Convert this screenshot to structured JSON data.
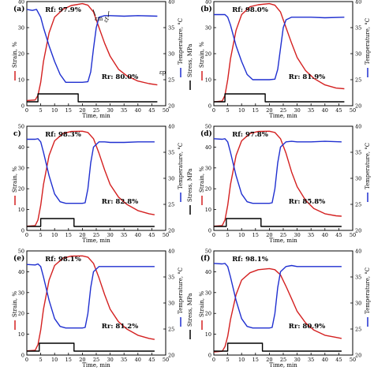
{
  "figure": {
    "colors": {
      "strain": "#d42020",
      "temperature": "#1f2fd0",
      "stress": "#000000"
    },
    "axis_labels": {
      "x": "Time, min",
      "y_left": "Strain, %",
      "y_right1": "Temperature, °C",
      "y_right2": "Stress, MPa"
    }
  },
  "chart_data": [
    {
      "panel": "(a)",
      "type": "line",
      "rf": "Rf: 97.9%",
      "rr": "Rr: 80.0%",
      "annotations": [
        "εm",
        "εf",
        "εp"
      ],
      "xlim": [
        0,
        50
      ],
      "xticks": [
        0,
        5,
        10,
        15,
        20,
        25,
        30,
        35,
        40,
        45,
        50
      ],
      "ylim_strain": [
        0,
        40
      ],
      "yticks_strain": [
        0,
        10,
        20,
        30,
        40
      ],
      "ylim_temp": [
        20,
        40
      ],
      "yticks_temp": [
        20,
        25,
        30,
        35,
        40
      ],
      "series": [
        {
          "name": "Strain",
          "x": [
            0,
            3,
            4,
            5,
            6,
            8,
            10,
            13,
            16,
            20,
            22,
            24,
            26,
            28,
            30,
            33,
            36,
            40,
            44,
            47
          ],
          "y": [
            2,
            2.2,
            4,
            9,
            17,
            28,
            34,
            37,
            38.5,
            39.2,
            38.6,
            36,
            30,
            24,
            19,
            14,
            11.5,
            9.5,
            8.5,
            8
          ]
        },
        {
          "name": "Temperature",
          "x": [
            0,
            2,
            3.5,
            5,
            6,
            8,
            10,
            12,
            14,
            16,
            18,
            20,
            22,
            23,
            24,
            25,
            26,
            28,
            30,
            35,
            40,
            47
          ],
          "y": [
            38.5,
            38.3,
            38.5,
            37,
            35,
            31.5,
            28.5,
            26,
            24.5,
            24.5,
            24.5,
            24.5,
            24.6,
            26.5,
            31,
            35,
            37,
            37.3,
            37.3,
            37.2,
            37.3,
            37.2
          ]
        },
        {
          "name": "Stress",
          "x": [
            0,
            4,
            4,
            18.5,
            18.5,
            47
          ],
          "y": [
            0,
            0,
            1,
            1,
            0,
            0
          ]
        }
      ]
    },
    {
      "panel": "(b)",
      "type": "line",
      "rf": "Rf: 98.0%",
      "rr": "Rr: 81.9%",
      "xlim": [
        0,
        50
      ],
      "xticks": [
        0,
        5,
        10,
        15,
        20,
        25,
        30,
        35,
        40,
        45,
        50
      ],
      "ylim_strain": [
        0,
        40
      ],
      "yticks_strain": [
        0,
        10,
        20,
        30,
        40
      ],
      "ylim_temp": [
        20,
        40
      ],
      "yticks_temp": [
        20,
        25,
        30,
        35,
        40
      ],
      "series": [
        {
          "name": "Strain",
          "x": [
            0,
            3,
            4,
            5,
            6,
            8,
            10,
            13,
            16,
            20,
            22,
            24,
            26,
            28,
            30,
            33,
            36,
            40,
            44,
            47
          ],
          "y": [
            1.5,
            1.8,
            4,
            10,
            18,
            29,
            35,
            38,
            38.8,
            39.2,
            38.6,
            36,
            30,
            24,
            18.5,
            13.5,
            10.5,
            8,
            6.8,
            6.5
          ]
        },
        {
          "name": "Temperature",
          "x": [
            0,
            3,
            4,
            5,
            6,
            8,
            10,
            12,
            14,
            16,
            18,
            20,
            22,
            23,
            24,
            25,
            26,
            28,
            30,
            35,
            40,
            47
          ],
          "y": [
            37.5,
            37.5,
            37.5,
            37,
            35.5,
            31.5,
            28.5,
            26,
            25,
            25,
            25,
            25,
            25.1,
            27,
            31,
            35,
            36.5,
            37,
            37,
            37,
            36.9,
            37
          ]
        },
        {
          "name": "Stress",
          "x": [
            0,
            4,
            4,
            18.5,
            18.5,
            47
          ],
          "y": [
            0,
            0,
            1,
            1,
            0,
            0
          ]
        }
      ]
    },
    {
      "panel": "c)",
      "type": "line",
      "rf": "Rf: 98.3%",
      "rr": "Rr: 82.8%",
      "xlim": [
        0,
        50
      ],
      "xticks": [
        0,
        5,
        10,
        15,
        20,
        25,
        30,
        35,
        40,
        45,
        50
      ],
      "ylim_strain": [
        0,
        50
      ],
      "yticks_strain": [
        0,
        10,
        20,
        30,
        40,
        50
      ],
      "ylim_temp": [
        20,
        40
      ],
      "yticks_temp": [
        20,
        25,
        30,
        35,
        40
      ],
      "series": [
        {
          "name": "Strain",
          "x": [
            0,
            3,
            4,
            5,
            6,
            8,
            10,
            13,
            16,
            20,
            22,
            24,
            26,
            28,
            30,
            33,
            36,
            40,
            44,
            46
          ],
          "y": [
            2,
            2.3,
            5,
            12,
            22,
            36,
            43,
            46.5,
            47.5,
            47.6,
            47,
            44,
            37,
            29,
            22,
            16,
            12.5,
            9.5,
            8,
            7.5
          ]
        },
        {
          "name": "Temperature",
          "x": [
            0,
            3,
            4,
            5,
            6,
            8,
            10,
            12,
            14,
            16,
            18,
            20,
            21,
            22,
            23,
            24,
            26,
            28,
            30,
            35,
            40,
            46
          ],
          "y": [
            37.5,
            37.5,
            37.6,
            37,
            35,
            30.5,
            27,
            25.5,
            25.2,
            25.2,
            25.2,
            25.2,
            25.3,
            28,
            33,
            36,
            37,
            37,
            36.9,
            36.9,
            37,
            37
          ]
        },
        {
          "name": "Stress",
          "x": [
            0,
            5,
            5,
            17,
            17,
            46
          ],
          "y": [
            0,
            0,
            1,
            1,
            0,
            0
          ]
        }
      ]
    },
    {
      "panel": "(d)",
      "type": "line",
      "rf": "Rf: 97.8%",
      "rr": "Rr: 85.8%",
      "xlim": [
        0,
        50
      ],
      "xticks": [
        0,
        5,
        10,
        15,
        20,
        25,
        30,
        35,
        40,
        45,
        50
      ],
      "ylim_strain": [
        0,
        50
      ],
      "yticks_strain": [
        0,
        10,
        20,
        30,
        40,
        50
      ],
      "ylim_temp": [
        20,
        40
      ],
      "yticks_temp": [
        20,
        25,
        30,
        35,
        40
      ],
      "series": [
        {
          "name": "Strain",
          "x": [
            0,
            3,
            4,
            5,
            6,
            8,
            10,
            13,
            16,
            20,
            22,
            24,
            26,
            28,
            30,
            33,
            36,
            40,
            44,
            46
          ],
          "y": [
            2,
            2.3,
            5,
            12,
            22,
            36,
            43,
            46.5,
            47.5,
            47.6,
            47,
            44,
            37,
            28,
            21,
            14.5,
            10.5,
            8,
            7,
            6.8
          ]
        },
        {
          "name": "Temperature",
          "x": [
            0,
            3,
            4,
            5,
            6,
            8,
            10,
            12,
            14,
            16,
            18,
            20,
            21,
            22,
            23,
            24,
            26,
            28,
            30,
            35,
            40,
            46
          ],
          "y": [
            37.6,
            37.5,
            37.6,
            37,
            35,
            30.5,
            27,
            25.5,
            25.2,
            25.2,
            25.2,
            25.2,
            25.3,
            28,
            33,
            36,
            37,
            37.1,
            37,
            37,
            37.1,
            37
          ]
        },
        {
          "name": "Stress",
          "x": [
            0,
            4.5,
            4.5,
            17,
            17,
            46
          ],
          "y": [
            0,
            0,
            1,
            1,
            0,
            0
          ]
        }
      ]
    },
    {
      "panel": "(e)",
      "type": "line",
      "rf": "Rf: 98.1%",
      "rr": "Rr: 81.2%",
      "xlim": [
        0,
        50
      ],
      "xticks": [
        0,
        5,
        10,
        15,
        20,
        25,
        30,
        35,
        40,
        45,
        50
      ],
      "ylim_strain": [
        0,
        50
      ],
      "yticks_strain": [
        0,
        10,
        20,
        30,
        40,
        50
      ],
      "ylim_temp": [
        20,
        40
      ],
      "yticks_temp": [
        20,
        25,
        30,
        35,
        40
      ],
      "series": [
        {
          "name": "Strain",
          "x": [
            0,
            3,
            4,
            5,
            6,
            8,
            10,
            13,
            16,
            20,
            22,
            24,
            26,
            28,
            30,
            33,
            36,
            40,
            44,
            46
          ],
          "y": [
            2,
            2.3,
            5,
            12,
            22,
            36,
            43,
            46.5,
            47.5,
            47.6,
            47,
            44,
            37,
            29,
            22,
            16,
            12.5,
            9.5,
            8,
            7.5
          ]
        },
        {
          "name": "Temperature",
          "x": [
            0,
            3,
            4,
            5,
            6,
            8,
            10,
            12,
            14,
            16,
            18,
            20,
            21,
            22,
            23,
            24,
            26,
            28,
            30,
            35,
            40,
            46
          ],
          "y": [
            37.4,
            37.3,
            37.5,
            37,
            35,
            30.5,
            27,
            25.5,
            25.2,
            25.2,
            25.2,
            25.2,
            25.3,
            28,
            33,
            36,
            37,
            37,
            37,
            37,
            37,
            37
          ]
        },
        {
          "name": "Stress",
          "x": [
            0,
            4.5,
            4.5,
            17,
            17,
            46
          ],
          "y": [
            0,
            0,
            1,
            1,
            0,
            0
          ]
        }
      ]
    },
    {
      "panel": "(f)",
      "type": "line",
      "rf": "Rf: 98.1%",
      "rr": "Rr: 80.9%",
      "xlim": [
        0,
        50
      ],
      "xticks": [
        0,
        5,
        10,
        15,
        20,
        25,
        30,
        35,
        40,
        45,
        50
      ],
      "ylim_strain": [
        0,
        50
      ],
      "yticks_strain": [
        0,
        10,
        20,
        30,
        40,
        50
      ],
      "ylim_temp": [
        20,
        40
      ],
      "yticks_temp": [
        20,
        25,
        30,
        35,
        40
      ],
      "series": [
        {
          "name": "Strain",
          "x": [
            0,
            3,
            4,
            5,
            6,
            8,
            10,
            13,
            16,
            20,
            22,
            24,
            26,
            28,
            30,
            33,
            36,
            40,
            44,
            46
          ],
          "y": [
            1.5,
            1.8,
            4,
            9,
            17,
            29,
            36,
            39.5,
            41,
            41.5,
            41,
            38.5,
            33,
            27,
            21,
            15.5,
            12,
            9.5,
            8.5,
            8
          ]
        },
        {
          "name": "Temperature",
          "x": [
            0,
            3,
            4,
            5,
            6,
            8,
            10,
            12,
            14,
            16,
            18,
            20,
            21,
            22,
            23,
            24,
            26,
            28,
            30,
            35,
            40,
            46
          ],
          "y": [
            37.6,
            37.5,
            37.6,
            37,
            35,
            30.5,
            27,
            25.5,
            25.2,
            25.2,
            25.2,
            25.2,
            25.3,
            28,
            33,
            36,
            37,
            37.2,
            37,
            37,
            37,
            37
          ]
        },
        {
          "name": "Stress",
          "x": [
            0,
            5,
            5,
            17.5,
            17.5,
            46
          ],
          "y": [
            0,
            0,
            1,
            1,
            0,
            0
          ]
        }
      ]
    }
  ]
}
